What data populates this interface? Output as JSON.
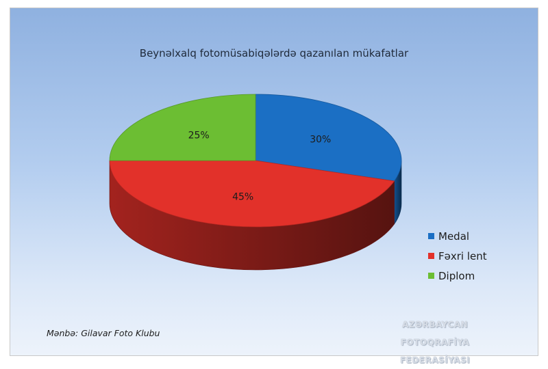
{
  "chart_data": {
    "type": "pie",
    "title": "Beynəlxalq fotomüsabiqələrdə qazanılan mükafatlar",
    "slices": [
      {
        "label": "Medal",
        "value": 30,
        "value_label": "30%",
        "color": "#1b6fc4"
      },
      {
        "label": "Fəxri lent",
        "value": 45,
        "value_label": "45%",
        "color": "#e2312a"
      },
      {
        "label": "Diplom",
        "value": 25,
        "value_label": "25%",
        "color": "#6cbe33"
      }
    ],
    "legend_position": "right",
    "style": "3d"
  },
  "source_note": "Mənbə: Gilavar Foto Klubu",
  "watermark": {
    "line1": "AZƏRBAYCAN FOTOQRAFİYA",
    "line2": "FEDERASİYASI"
  }
}
